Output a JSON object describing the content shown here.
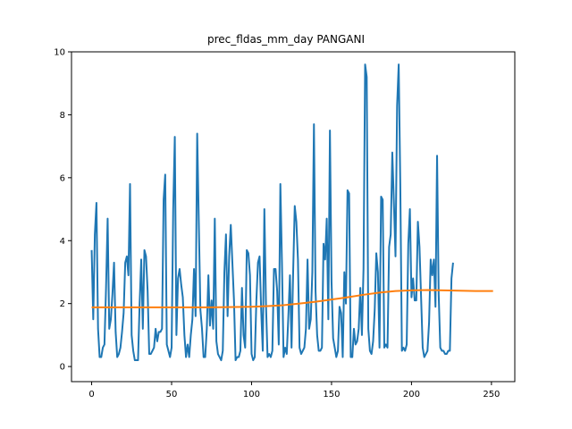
{
  "chart_data": {
    "type": "line",
    "title": "prec_fldas_mm_day PANGANI",
    "xlabel": "",
    "ylabel": "",
    "xlim": [
      -12.6,
      264.6
    ],
    "ylim": [
      -0.48,
      10.0
    ],
    "xticks": [
      0,
      50,
      100,
      150,
      200,
      250
    ],
    "yticks": [
      0,
      2,
      4,
      6,
      8,
      10
    ],
    "grid": false,
    "legend": "none",
    "series": [
      {
        "color": "#1f77b4",
        "points": [
          [
            0,
            3.7
          ],
          [
            1,
            1.5
          ],
          [
            2,
            4.2
          ],
          [
            3,
            5.2
          ],
          [
            4,
            1.2
          ],
          [
            5,
            0.3
          ],
          [
            6,
            0.3
          ],
          [
            7,
            0.6
          ],
          [
            8,
            0.7
          ],
          [
            9,
            2.5
          ],
          [
            10,
            4.7
          ],
          [
            11,
            1.2
          ],
          [
            12,
            1.5
          ],
          [
            13,
            2.3
          ],
          [
            14,
            3.3
          ],
          [
            15,
            1.1
          ],
          [
            16,
            0.3
          ],
          [
            17,
            0.4
          ],
          [
            18,
            0.6
          ],
          [
            19,
            1.1
          ],
          [
            20,
            1.7
          ],
          [
            21,
            3.3
          ],
          [
            22,
            3.5
          ],
          [
            23,
            2.9
          ],
          [
            24,
            5.8
          ],
          [
            25,
            1.0
          ],
          [
            26,
            0.5
          ],
          [
            27,
            0.2
          ],
          [
            28,
            0.2
          ],
          [
            29,
            0.2
          ],
          [
            30,
            2.0
          ],
          [
            31,
            3.4
          ],
          [
            32,
            1.2
          ],
          [
            33,
            3.7
          ],
          [
            34,
            3.5
          ],
          [
            35,
            2.4
          ],
          [
            36,
            0.4
          ],
          [
            37,
            0.4
          ],
          [
            38,
            0.5
          ],
          [
            39,
            0.6
          ],
          [
            40,
            1.2
          ],
          [
            41,
            0.8
          ],
          [
            42,
            1.1
          ],
          [
            43,
            1.1
          ],
          [
            44,
            1.2
          ],
          [
            45,
            5.3
          ],
          [
            46,
            6.1
          ],
          [
            47,
            0.7
          ],
          [
            48,
            0.5
          ],
          [
            49,
            0.3
          ],
          [
            50,
            0.6
          ],
          [
            51,
            5.0
          ],
          [
            52,
            7.3
          ],
          [
            53,
            1.0
          ],
          [
            54,
            2.8
          ],
          [
            55,
            3.1
          ],
          [
            56,
            2.6
          ],
          [
            57,
            2.2
          ],
          [
            58,
            1.0
          ],
          [
            59,
            0.3
          ],
          [
            60,
            0.7
          ],
          [
            61,
            0.3
          ],
          [
            62,
            1.0
          ],
          [
            63,
            1.5
          ],
          [
            64,
            3.1
          ],
          [
            65,
            1.6
          ],
          [
            66,
            7.4
          ],
          [
            67,
            4.6
          ],
          [
            68,
            1.8
          ],
          [
            69,
            1.2
          ],
          [
            70,
            0.3
          ],
          [
            71,
            0.3
          ],
          [
            72,
            1.2
          ],
          [
            73,
            2.9
          ],
          [
            74,
            1.3
          ],
          [
            75,
            2.1
          ],
          [
            76,
            1.2
          ],
          [
            77,
            4.7
          ],
          [
            78,
            0.8
          ],
          [
            79,
            0.4
          ],
          [
            80,
            0.3
          ],
          [
            81,
            0.2
          ],
          [
            82,
            0.5
          ],
          [
            83,
            3.0
          ],
          [
            84,
            4.2
          ],
          [
            85,
            1.6
          ],
          [
            86,
            3.5
          ],
          [
            87,
            4.5
          ],
          [
            88,
            3.3
          ],
          [
            89,
            2.1
          ],
          [
            90,
            0.2
          ],
          [
            91,
            0.3
          ],
          [
            92,
            0.3
          ],
          [
            93,
            0.5
          ],
          [
            94,
            2.5
          ],
          [
            95,
            1.0
          ],
          [
            96,
            0.6
          ],
          [
            97,
            3.7
          ],
          [
            98,
            3.6
          ],
          [
            99,
            2.9
          ],
          [
            100,
            0.4
          ],
          [
            101,
            0.2
          ],
          [
            102,
            0.3
          ],
          [
            103,
            2.1
          ],
          [
            104,
            3.3
          ],
          [
            105,
            3.5
          ],
          [
            106,
            1.8
          ],
          [
            107,
            0.5
          ],
          [
            108,
            5.0
          ],
          [
            109,
            2.0
          ],
          [
            110,
            0.3
          ],
          [
            111,
            0.4
          ],
          [
            112,
            0.3
          ],
          [
            113,
            0.5
          ],
          [
            114,
            3.1
          ],
          [
            115,
            3.1
          ],
          [
            116,
            2.4
          ],
          [
            117,
            0.7
          ],
          [
            118,
            5.8
          ],
          [
            119,
            3.3
          ],
          [
            120,
            0.3
          ],
          [
            121,
            0.6
          ],
          [
            122,
            0.4
          ],
          [
            123,
            1.6
          ],
          [
            124,
            2.9
          ],
          [
            125,
            0.6
          ],
          [
            126,
            3.0
          ],
          [
            127,
            5.1
          ],
          [
            128,
            4.6
          ],
          [
            129,
            3.4
          ],
          [
            130,
            0.6
          ],
          [
            131,
            0.4
          ],
          [
            132,
            0.5
          ],
          [
            133,
            0.6
          ],
          [
            134,
            1.2
          ],
          [
            135,
            3.4
          ],
          [
            136,
            1.2
          ],
          [
            137,
            1.5
          ],
          [
            138,
            3.0
          ],
          [
            139,
            7.7
          ],
          [
            140,
            2.4
          ],
          [
            141,
            1.0
          ],
          [
            142,
            0.5
          ],
          [
            143,
            0.5
          ],
          [
            144,
            0.6
          ],
          [
            145,
            3.9
          ],
          [
            146,
            3.4
          ],
          [
            147,
            4.7
          ],
          [
            148,
            1.5
          ],
          [
            149,
            7.5
          ],
          [
            150,
            2.7
          ],
          [
            151,
            0.9
          ],
          [
            152,
            0.6
          ],
          [
            153,
            0.3
          ],
          [
            154,
            0.5
          ],
          [
            155,
            1.9
          ],
          [
            156,
            1.7
          ],
          [
            157,
            0.3
          ],
          [
            158,
            3.0
          ],
          [
            159,
            2.0
          ],
          [
            160,
            5.6
          ],
          [
            161,
            5.5
          ],
          [
            162,
            0.3
          ],
          [
            163,
            0.3
          ],
          [
            164,
            1.2
          ],
          [
            165,
            0.7
          ],
          [
            166,
            0.8
          ],
          [
            167,
            1.2
          ],
          [
            168,
            2.5
          ],
          [
            169,
            1.0
          ],
          [
            170,
            3.1
          ],
          [
            171,
            9.6
          ],
          [
            172,
            9.2
          ],
          [
            173,
            1.2
          ],
          [
            174,
            0.5
          ],
          [
            175,
            0.4
          ],
          [
            176,
            0.8
          ],
          [
            177,
            1.8
          ],
          [
            178,
            3.6
          ],
          [
            179,
            3.0
          ],
          [
            180,
            0.6
          ],
          [
            181,
            5.4
          ],
          [
            182,
            5.3
          ],
          [
            183,
            0.6
          ],
          [
            184,
            0.7
          ],
          [
            185,
            0.6
          ],
          [
            186,
            3.8
          ],
          [
            187,
            4.2
          ],
          [
            188,
            6.8
          ],
          [
            189,
            5.2
          ],
          [
            190,
            3.5
          ],
          [
            191,
            8.3
          ],
          [
            192,
            9.6
          ],
          [
            193,
            5.8
          ],
          [
            194,
            0.5
          ],
          [
            195,
            0.6
          ],
          [
            196,
            0.5
          ],
          [
            197,
            0.7
          ],
          [
            198,
            3.9
          ],
          [
            199,
            5.0
          ],
          [
            200,
            2.2
          ],
          [
            201,
            2.8
          ],
          [
            202,
            2.1
          ],
          [
            203,
            2.1
          ],
          [
            204,
            4.6
          ],
          [
            205,
            3.8
          ],
          [
            206,
            2.2
          ],
          [
            207,
            0.6
          ],
          [
            208,
            0.3
          ],
          [
            209,
            0.4
          ],
          [
            210,
            0.5
          ],
          [
            211,
            1.4
          ],
          [
            212,
            3.4
          ],
          [
            213,
            2.9
          ],
          [
            214,
            3.4
          ],
          [
            215,
            1.9
          ],
          [
            216,
            6.7
          ],
          [
            217,
            2.3
          ],
          [
            218,
            0.6
          ],
          [
            219,
            0.5
          ],
          [
            220,
            0.5
          ],
          [
            221,
            0.4
          ],
          [
            222,
            0.4
          ],
          [
            223,
            0.5
          ],
          [
            224,
            0.5
          ],
          [
            225,
            2.8
          ],
          [
            226,
            3.3
          ]
        ]
      },
      {
        "color": "#ff7f0e",
        "points": [
          [
            0,
            1.88
          ],
          [
            25,
            1.88
          ],
          [
            50,
            1.88
          ],
          [
            75,
            1.88
          ],
          [
            90,
            1.89
          ],
          [
            100,
            1.9
          ],
          [
            110,
            1.92
          ],
          [
            120,
            1.95
          ],
          [
            130,
            2.0
          ],
          [
            140,
            2.06
          ],
          [
            150,
            2.13
          ],
          [
            160,
            2.2
          ],
          [
            170,
            2.28
          ],
          [
            180,
            2.35
          ],
          [
            190,
            2.4
          ],
          [
            200,
            2.42
          ],
          [
            210,
            2.43
          ],
          [
            220,
            2.42
          ],
          [
            230,
            2.41
          ],
          [
            240,
            2.4
          ],
          [
            250,
            2.4
          ],
          [
            251,
            2.4
          ]
        ]
      }
    ]
  }
}
